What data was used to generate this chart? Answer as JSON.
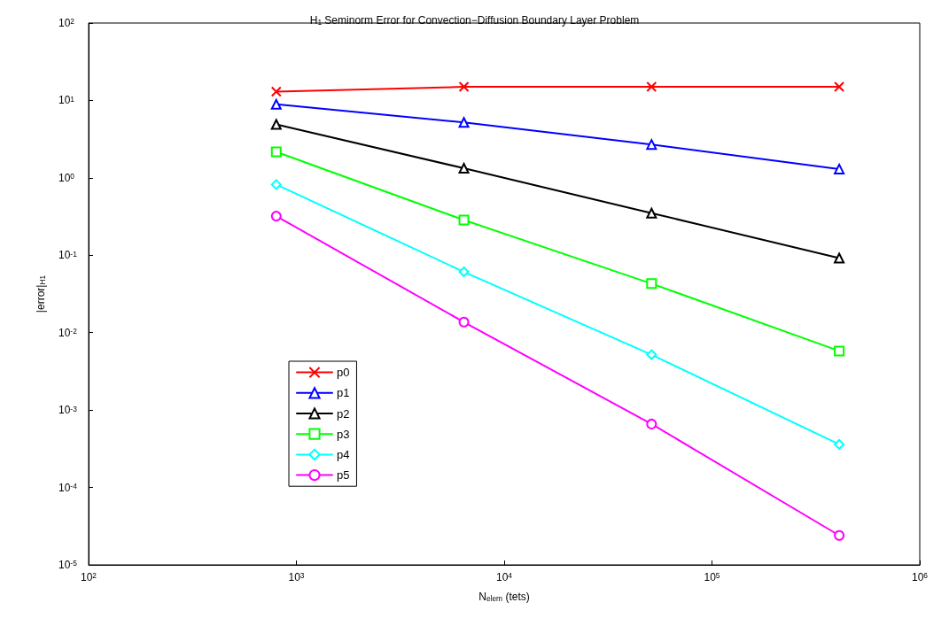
{
  "chart_data": {
    "type": "line",
    "title": "H$_{1}$ Seminorm Error for Convection−Diffusion Boundary Layer Problem",
    "xlabel": "N$_{elem}$ (tets)",
    "ylabel": "|error|$_{H1}$",
    "log": "xy",
    "grid": false,
    "legend": "bottom left",
    "line_style": "solid",
    "x": [
      800,
      6400,
      51200,
      409600
    ],
    "xlim": [
      100,
      1000000
    ],
    "xticks": [
      {
        "value": 100,
        "label": "10$^{2}$"
      },
      {
        "value": 1000,
        "label": "10$^{3}$"
      },
      {
        "value": 10000,
        "label": "10$^{4}$"
      },
      {
        "value": 100000,
        "label": "10$^{5}$"
      },
      {
        "value": 1000000,
        "label": "10$^{6}$"
      }
    ],
    "ylim": [
      1e-05,
      100
    ],
    "yticks": [
      {
        "value": 1e-05,
        "label": "10$^{-5}$"
      },
      {
        "value": 0.0001,
        "label": "10$^{-4}$"
      },
      {
        "value": 0.001,
        "label": "10$^{-3}$"
      },
      {
        "value": 0.01,
        "label": "10$^{-2}$"
      },
      {
        "value": 0.1,
        "label": "10$^{-1}$"
      },
      {
        "value": 1,
        "label": "10$^{0}$"
      },
      {
        "value": 10,
        "label": "10$^{1}$"
      },
      {
        "value": 100,
        "label": "10$^{2}$"
      }
    ],
    "series": [
      {
        "name": "p0",
        "color": "#ff0000",
        "marker": "cross",
        "values": [
          13,
          15,
          15,
          15
        ]
      },
      {
        "name": "p1",
        "color": "#0000ff",
        "marker": "triangle",
        "values": [
          8.9,
          5.2,
          2.7,
          1.3
        ]
      },
      {
        "name": "p2",
        "color": "#000000",
        "marker": "triangle",
        "values": [
          4.9,
          1.33,
          0.35,
          0.092
        ]
      },
      {
        "name": "p3",
        "color": "#00ff00",
        "marker": "square",
        "values": [
          2.17,
          0.285,
          0.043,
          0.0058
        ]
      },
      {
        "name": "p4",
        "color": "#00ffff",
        "marker": "diamond",
        "values": [
          0.82,
          0.061,
          0.0052,
          0.00036
        ]
      },
      {
        "name": "p5",
        "color": "#ff00ff",
        "marker": "circle",
        "values": [
          0.32,
          0.0137,
          0.00066,
          2.4e-05
        ]
      }
    ]
  }
}
